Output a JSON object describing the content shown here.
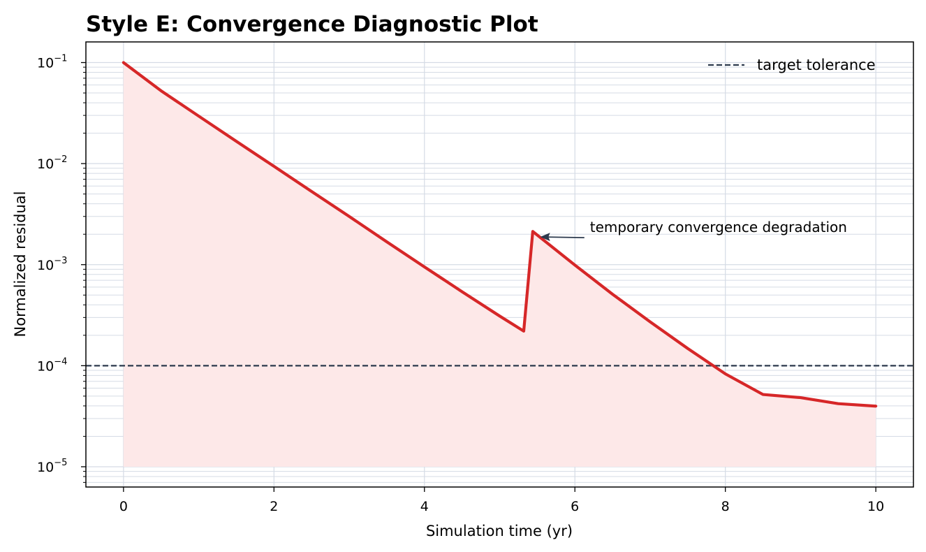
{
  "chart_data": {
    "type": "line",
    "title": "Style E: Convergence Diagnostic Plot",
    "xlabel": "Simulation time (yr)",
    "ylabel": "Normalized residual",
    "xlim": [
      -0.5,
      10.5
    ],
    "ylim": [
      6.3e-06,
      0.16
    ],
    "y_scale": "log",
    "x_ticks": [
      0,
      2,
      4,
      6,
      8,
      10
    ],
    "x_tick_labels": [
      "0",
      "2",
      "4",
      "6",
      "8",
      "10"
    ],
    "y_ticks": [
      1e-05,
      0.0001,
      0.001,
      0.01,
      0.1
    ],
    "y_tick_labels": [
      {
        "base": "10",
        "exp": "−5"
      },
      {
        "base": "10",
        "exp": "−4"
      },
      {
        "base": "10",
        "exp": "−3"
      },
      {
        "base": "10",
        "exp": "−2"
      },
      {
        "base": "10",
        "exp": "−1"
      }
    ],
    "grid": true,
    "grid_minor_y": true,
    "series": [
      {
        "name": "",
        "color": "#d62728",
        "fill_color": "#fde8e8",
        "fill_baseline": 1e-05,
        "x": [
          0,
          0.5,
          1,
          1.5,
          2,
          2.5,
          3,
          3.5,
          4,
          4.5,
          5,
          5.32,
          5.44,
          6,
          6.5,
          7,
          7.5,
          8,
          8.5,
          9,
          9.5,
          10
        ],
        "y": [
          0.1,
          0.0525,
          0.0295,
          0.0166,
          0.0094,
          0.0053,
          0.003,
          0.00168,
          0.00095,
          0.00054,
          0.00031,
          0.00022,
          0.00213,
          0.00099,
          0.00051,
          0.000272,
          0.000148,
          8.3e-05,
          5.19e-05,
          4.83e-05,
          4.21e-05,
          3.98e-05
        ]
      }
    ],
    "reference_lines": [
      {
        "name": "target tolerance",
        "y": 0.0001,
        "color": "#2d3a4d",
        "style": "dashed"
      }
    ],
    "legend": {
      "placement": "top-right",
      "entries": [
        "target tolerance"
      ]
    },
    "annotations": [
      {
        "text": "temporary convergence degradation",
        "point_x": 5.55,
        "point_y": 0.00188,
        "text_x": 6.2,
        "text_y": 0.0021
      }
    ]
  }
}
